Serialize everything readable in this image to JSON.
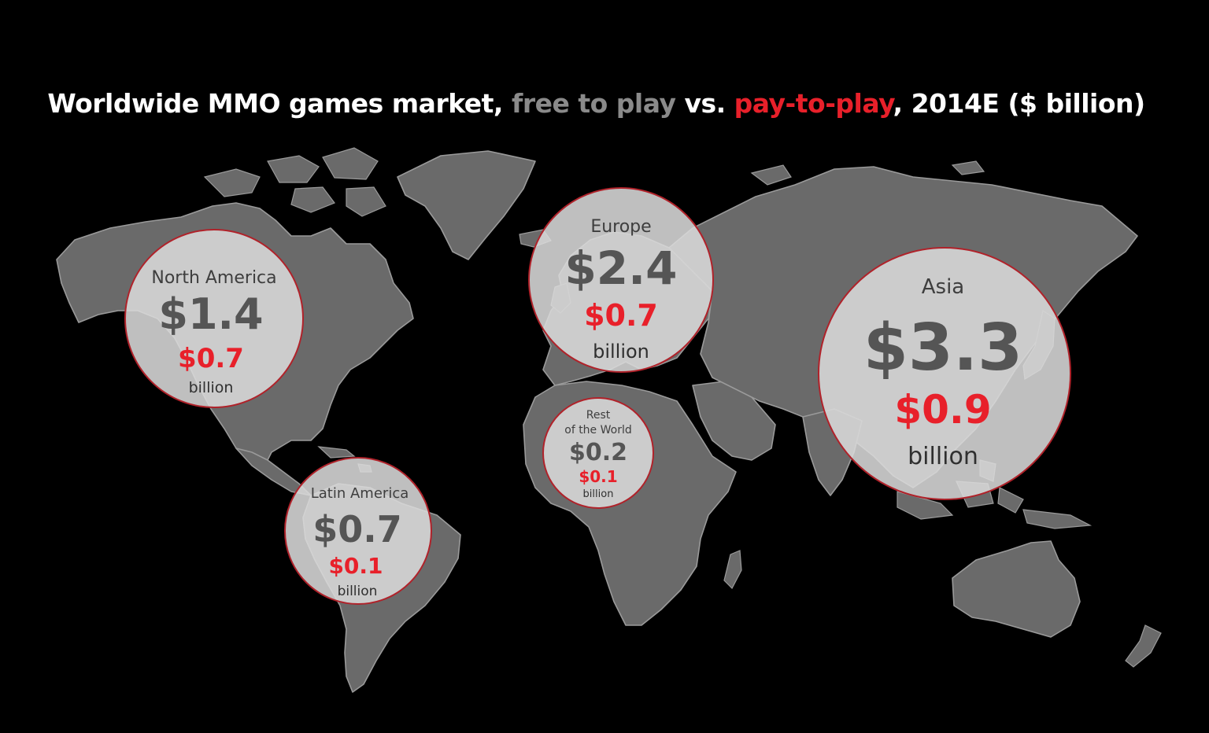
{
  "title": {
    "part1": "Worldwide MMO games market, ",
    "free_label": "free to play",
    "part2": " vs. ",
    "pay_label": "pay-to-play",
    "part3": ", 2014E ($ billion)"
  },
  "colors": {
    "background": "#000000",
    "land": "#6a6a6a",
    "bubble": "#d9d9d9",
    "bubble_border": "#b0222a",
    "free_to_play": "#555555",
    "pay_to_play": "#e8202a"
  },
  "regions": [
    {
      "id": "north-america",
      "name": "North America",
      "free": "$1.4",
      "pay": "$0.7",
      "unit": "billion"
    },
    {
      "id": "europe",
      "name": "Europe",
      "free": "$2.4",
      "pay": "$0.7",
      "unit": "billion"
    },
    {
      "id": "asia",
      "name": "Asia",
      "free": "$3.3",
      "pay": "$0.9",
      "unit": "billion"
    },
    {
      "id": "latin-america",
      "name": "Latin America",
      "free": "$0.7",
      "pay": "$0.1",
      "unit": "billion"
    },
    {
      "id": "rest-of-world",
      "name_line1": "Rest",
      "name_line2": "of the World",
      "free": "$0.2",
      "pay": "$0.1",
      "unit": "billion"
    }
  ]
}
